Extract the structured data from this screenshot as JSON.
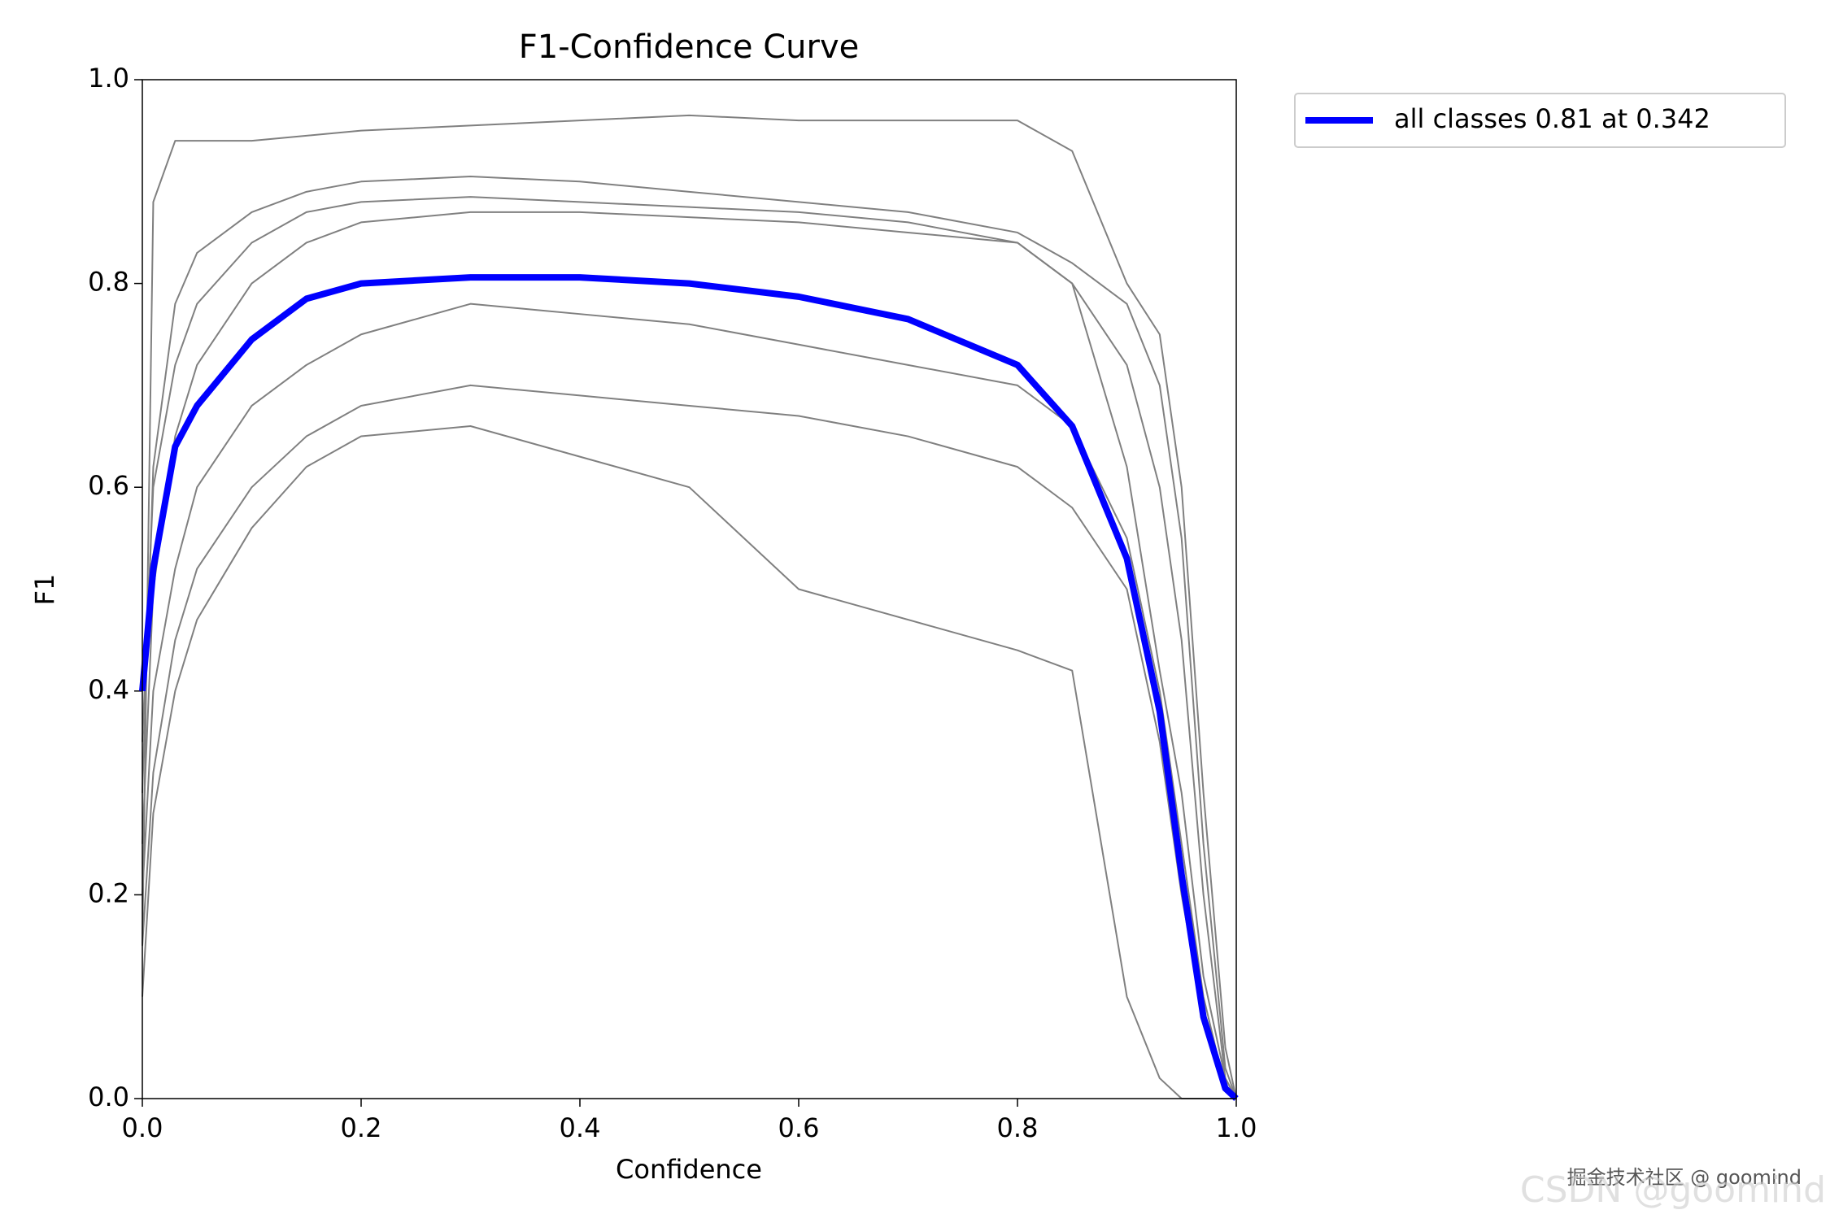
{
  "chart_data": {
    "type": "line",
    "title": "F1-Confidence Curve",
    "x_label": "Confidence",
    "y_label": "F1",
    "x": [
      0,
      0.01,
      0.03,
      0.05,
      0.1,
      0.15,
      0.2,
      0.3,
      0.4,
      0.5,
      0.6,
      0.7,
      0.8,
      0.85,
      0.9,
      0.93,
      0.95,
      0.97,
      0.99,
      1.0
    ],
    "series": [
      {
        "color": "#808080",
        "values": [
          0.15,
          0.88,
          0.94,
          0.94,
          0.94,
          0.945,
          0.95,
          0.955,
          0.96,
          0.965,
          0.96,
          0.96,
          0.96,
          0.93,
          0.8,
          0.75,
          0.6,
          0.3,
          0.05,
          0
        ]
      },
      {
        "color": "#808080",
        "values": [
          0.3,
          0.62,
          0.78,
          0.83,
          0.87,
          0.89,
          0.9,
          0.905,
          0.9,
          0.89,
          0.88,
          0.87,
          0.85,
          0.82,
          0.78,
          0.7,
          0.55,
          0.25,
          0.03,
          0
        ]
      },
      {
        "color": "#808080",
        "values": [
          0.25,
          0.5,
          0.65,
          0.72,
          0.8,
          0.84,
          0.86,
          0.87,
          0.87,
          0.865,
          0.86,
          0.85,
          0.84,
          0.8,
          0.72,
          0.6,
          0.45,
          0.2,
          0.02,
          0
        ]
      },
      {
        "color": "#808080",
        "values": [
          0.2,
          0.4,
          0.52,
          0.6,
          0.68,
          0.72,
          0.75,
          0.78,
          0.77,
          0.76,
          0.74,
          0.72,
          0.7,
          0.66,
          0.55,
          0.4,
          0.25,
          0.1,
          0.01,
          0
        ]
      },
      {
        "color": "#808080",
        "values": [
          0.15,
          0.32,
          0.45,
          0.52,
          0.6,
          0.65,
          0.68,
          0.7,
          0.69,
          0.68,
          0.67,
          0.65,
          0.62,
          0.58,
          0.5,
          0.35,
          0.2,
          0.08,
          0.01,
          0
        ]
      },
      {
        "color": "#808080",
        "values": [
          0.1,
          0.28,
          0.4,
          0.47,
          0.56,
          0.62,
          0.65,
          0.66,
          0.63,
          0.6,
          0.5,
          0.47,
          0.44,
          0.42,
          0.1,
          0.02,
          0,
          0,
          0,
          0
        ]
      },
      {
        "color": "#808080",
        "values": [
          0.35,
          0.6,
          0.72,
          0.78,
          0.84,
          0.87,
          0.88,
          0.885,
          0.88,
          0.875,
          0.87,
          0.86,
          0.84,
          0.8,
          0.62,
          0.42,
          0.3,
          0.12,
          0.02,
          0
        ]
      },
      {
        "name": "all classes 0.81 at 0.342",
        "color": "#0000ff",
        "values": [
          0.4,
          0.52,
          0.64,
          0.68,
          0.745,
          0.785,
          0.8,
          0.806,
          0.806,
          0.8,
          0.787,
          0.765,
          0.72,
          0.66,
          0.53,
          0.38,
          0.22,
          0.08,
          0.01,
          0
        ]
      }
    ],
    "xlim": [
      0,
      1
    ],
    "ylim": [
      0,
      1
    ],
    "xticks": [
      {
        "value": 0,
        "label": "0.0"
      },
      0.2,
      0.4,
      0.6,
      0.8,
      {
        "value": 1,
        "label": "1.0"
      }
    ],
    "yticks": [
      {
        "value": 0,
        "label": "0.0"
      },
      0.2,
      0.4,
      0.6,
      0.8,
      {
        "value": 1,
        "label": "1.0"
      }
    ],
    "legend": "upper-right-outside",
    "watermark": [
      "掘金技术社区 @ goomind",
      "CSDN @goomind"
    ]
  }
}
